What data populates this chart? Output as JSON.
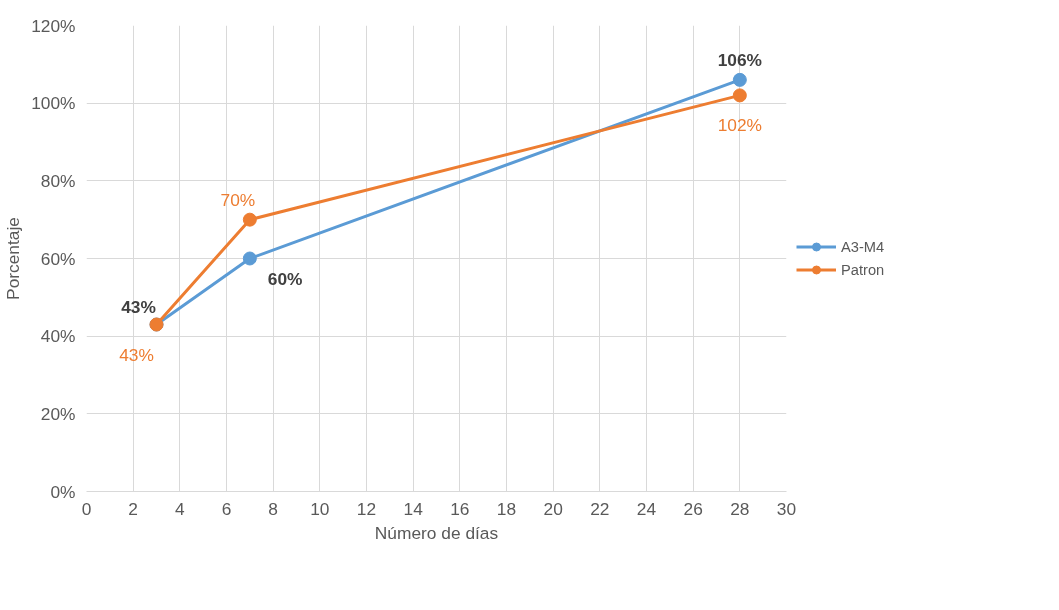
{
  "chart_data": {
    "type": "line",
    "xlabel": "Número de días",
    "ylabel": "Porcentaje",
    "xlim": [
      0,
      30
    ],
    "xticks": [
      0,
      2,
      4,
      6,
      8,
      10,
      12,
      14,
      16,
      18,
      20,
      22,
      24,
      26,
      28,
      30
    ],
    "ylim": [
      0,
      120
    ],
    "yticks": [
      {
        "value": 0,
        "label": "0%"
      },
      {
        "value": 20,
        "label": "20%"
      },
      {
        "value": 40,
        "label": "40%"
      },
      {
        "value": 60,
        "label": "60%"
      },
      {
        "value": 80,
        "label": "80%"
      },
      {
        "value": 100,
        "label": "100%"
      },
      {
        "value": 120,
        "label": "120%"
      }
    ],
    "x": [
      3,
      7,
      28
    ],
    "series": [
      {
        "name": "A3-M4",
        "color": "#5b9bd5",
        "values": [
          43,
          60,
          106
        ],
        "value_labels": [
          "43%",
          "60%",
          "106%"
        ]
      },
      {
        "name": "Patron",
        "color": "#ed7d31",
        "values": [
          43,
          70,
          102
        ],
        "value_labels": [
          "43%",
          "70%",
          "102%"
        ]
      }
    ],
    "marker": "circle",
    "line_style": "solid",
    "grid": true,
    "legend": "right"
  }
}
